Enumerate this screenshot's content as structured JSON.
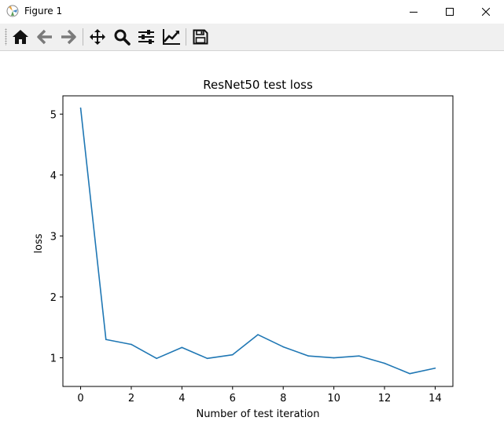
{
  "window": {
    "title": "Figure 1"
  },
  "toolbar": {
    "buttons": [
      {
        "name": "home-icon"
      },
      {
        "name": "back-icon"
      },
      {
        "name": "forward-icon"
      },
      {
        "name": "pan-icon"
      },
      {
        "name": "zoom-icon"
      },
      {
        "name": "subplots-icon"
      },
      {
        "name": "edit-axis-icon"
      },
      {
        "name": "save-icon"
      }
    ]
  },
  "chart_data": {
    "type": "line",
    "title": "ResNet50 test loss",
    "xlabel": "Number of test iteration",
    "ylabel": "loss",
    "x": [
      0,
      1,
      2,
      3,
      4,
      5,
      6,
      7,
      8,
      9,
      10,
      11,
      12,
      13,
      14
    ],
    "series": [
      {
        "name": "",
        "color": "#1f77b4",
        "values": [
          5.1,
          1.3,
          1.22,
          0.99,
          1.17,
          0.99,
          1.05,
          1.38,
          1.18,
          1.03,
          1.0,
          1.03,
          0.91,
          0.74,
          0.83
        ]
      }
    ],
    "xlim": [
      -0.7,
      14.7
    ],
    "ylim": [
      0.53,
      5.3
    ],
    "xticks": [
      0,
      2,
      4,
      6,
      8,
      10,
      12,
      14
    ],
    "yticks": [
      1,
      2,
      3,
      4,
      5
    ],
    "grid": false
  }
}
